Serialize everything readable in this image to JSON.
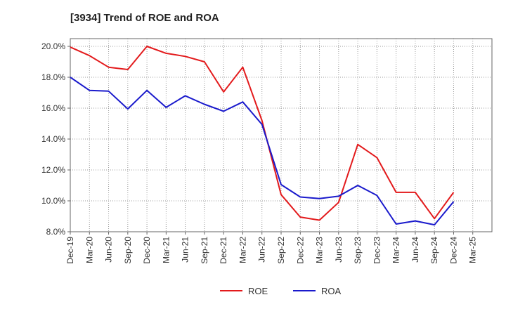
{
  "chart_data": {
    "type": "line",
    "title": "[3934]  Trend of ROE and ROA",
    "xlabel": "",
    "ylabel": "",
    "categories": [
      "Dec-19",
      "Mar-20",
      "Jun-20",
      "Sep-20",
      "Dec-20",
      "Mar-21",
      "Jun-21",
      "Sep-21",
      "Dec-21",
      "Mar-22",
      "Jun-22",
      "Sep-22",
      "Dec-22",
      "Mar-23",
      "Jun-23",
      "Sep-23",
      "Dec-23",
      "Mar-24",
      "Jun-24",
      "Sep-24",
      "Dec-24",
      "Mar-25"
    ],
    "ylim": [
      8,
      20.5
    ],
    "yticks": [
      8,
      10,
      12,
      14,
      16,
      18,
      20
    ],
    "ytick_labels": [
      "8.0%",
      "10.0%",
      "12.0%",
      "14.0%",
      "16.0%",
      "18.0%",
      "20.0%"
    ],
    "grid": true,
    "legend_position": "bottom-center",
    "series": [
      {
        "name": "ROE",
        "color": "#e31a1c",
        "values": [
          19.95,
          19.4,
          18.65,
          18.5,
          20.0,
          19.55,
          19.35,
          19.0,
          17.05,
          18.65,
          15.2,
          10.4,
          8.95,
          8.75,
          9.9,
          13.65,
          12.8,
          10.55,
          10.55,
          8.85,
          10.55,
          null
        ]
      },
      {
        "name": "ROA",
        "color": "#1a1acc",
        "values": [
          18.0,
          17.15,
          17.1,
          15.95,
          17.15,
          16.05,
          16.8,
          16.25,
          15.8,
          16.4,
          14.95,
          11.05,
          10.25,
          10.15,
          10.3,
          11.0,
          10.35,
          8.5,
          8.7,
          8.45,
          9.95,
          null
        ]
      }
    ]
  }
}
